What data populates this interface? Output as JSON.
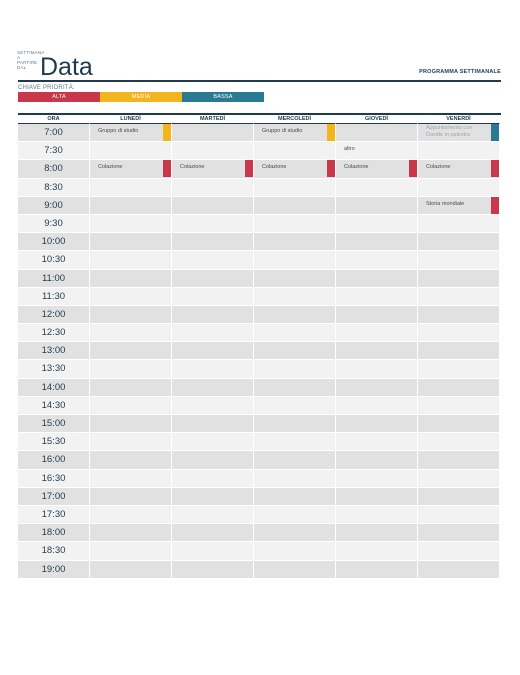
{
  "header": {
    "week_label": "SETTIMANA A PARTIRE DAL",
    "title": "Data",
    "subtitle": "PROGRAMMA SETTIMANALE"
  },
  "priority_key": {
    "label": "CHIAVE PRIORITÀ:",
    "items": [
      {
        "label": "ALTA",
        "color": "#c8374a"
      },
      {
        "label": "MEDIA",
        "color": "#f2b51c"
      },
      {
        "label": "BASSA",
        "color": "#2a7a94"
      }
    ]
  },
  "schedule": {
    "time_header": "ORA",
    "days": [
      "LUNEDÌ",
      "MARTEDÌ",
      "MERCOLEDÌ",
      "GIOVEDÌ",
      "VENERDÌ"
    ],
    "times": [
      "7:00",
      "7:30",
      "8:00",
      "8:30",
      "9:00",
      "9:30",
      "10:00",
      "10:30",
      "11:00",
      "11:30",
      "12:00",
      "12:30",
      "13:00",
      "13:30",
      "14:00",
      "14:30",
      "15:00",
      "15:30",
      "16:00",
      "16:30",
      "17:00",
      "17:30",
      "18:00",
      "18:30",
      "19:00"
    ],
    "events": [
      {
        "time_index": 0,
        "day_index": 0,
        "text": "Gruppo di studio",
        "priority": "MEDIA",
        "color": "#f2b51c"
      },
      {
        "time_index": 0,
        "day_index": 2,
        "text": "Gruppo di studio",
        "priority": "MEDIA",
        "color": "#f2b51c"
      },
      {
        "time_index": 0,
        "day_index": 4,
        "text": "Appuntamento con Davide in palestra",
        "priority": "BASSA",
        "color": "#2a7a94",
        "muted": true
      },
      {
        "time_index": 1,
        "day_index": 3,
        "text": "altro"
      },
      {
        "time_index": 2,
        "day_index": 0,
        "text": "Colazione",
        "priority": "ALTA",
        "color": "#c8374a"
      },
      {
        "time_index": 2,
        "day_index": 1,
        "text": "Colazione",
        "priority": "ALTA",
        "color": "#c8374a"
      },
      {
        "time_index": 2,
        "day_index": 2,
        "text": "Colazione",
        "priority": "ALTA",
        "color": "#c8374a"
      },
      {
        "time_index": 2,
        "day_index": 3,
        "text": "Colazione",
        "priority": "ALTA",
        "color": "#c8374a"
      },
      {
        "time_index": 2,
        "day_index": 4,
        "text": "Colazione",
        "priority": "ALTA",
        "color": "#c8374a"
      },
      {
        "time_index": 4,
        "day_index": 4,
        "text": "Storia mondiale",
        "priority": "ALTA",
        "color": "#c8374a"
      }
    ]
  }
}
